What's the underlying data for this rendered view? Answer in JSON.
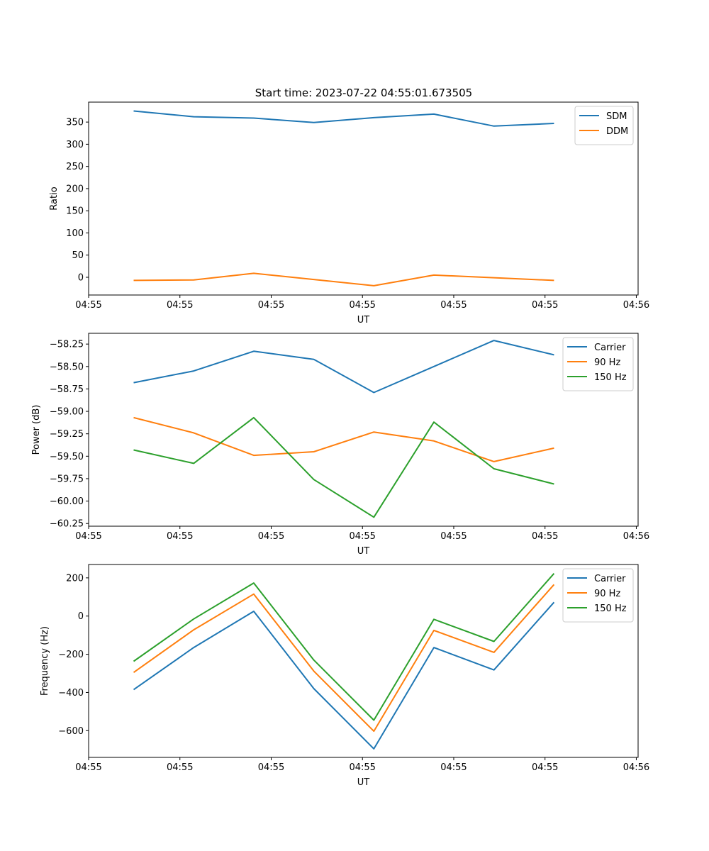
{
  "figure": {
    "title": "Start time: 2023-07-22 04:55:01.673505"
  },
  "colors": {
    "blue": "#1f77b4",
    "orange": "#ff7f0e",
    "green": "#2ca02c"
  },
  "chart_data": [
    {
      "type": "line",
      "title": "Start time: 2023-07-22 04:55:01.673505",
      "xlabel": "UT",
      "ylabel": "Ratio",
      "x": [
        0,
        1,
        2,
        3,
        4,
        5,
        6,
        7
      ],
      "xlim": [
        -0.75,
        8.4
      ],
      "x_ticks": [
        -0.75,
        0.77,
        2.29,
        3.81,
        5.33,
        6.85,
        8.37
      ],
      "x_tick_labels": [
        "04:55",
        "04:55",
        "04:55",
        "04:55",
        "04:55",
        "04:55",
        "04:56"
      ],
      "ylim": [
        -40,
        395
      ],
      "y_ticks": [
        0,
        50,
        100,
        150,
        200,
        250,
        300,
        350
      ],
      "y_tick_labels": [
        "0",
        "50",
        "100",
        "150",
        "200",
        "250",
        "300",
        "350"
      ],
      "legend_position": "top-right",
      "series": [
        {
          "name": "SDM",
          "color": "#1f77b4",
          "values": [
            375,
            362,
            359,
            349,
            360,
            368,
            341,
            347
          ]
        },
        {
          "name": "DDM",
          "color": "#ff7f0e",
          "values": [
            -7,
            -6,
            9,
            -5,
            -19,
            5,
            -1,
            -7
          ]
        }
      ]
    },
    {
      "type": "line",
      "title": "",
      "xlabel": "UT",
      "ylabel": "Power (dB)",
      "x": [
        0,
        1,
        2,
        3,
        4,
        5,
        6,
        7
      ],
      "xlim": [
        -0.75,
        8.4
      ],
      "x_ticks": [
        -0.75,
        0.77,
        2.29,
        3.81,
        5.33,
        6.85,
        8.37
      ],
      "x_tick_labels": [
        "04:55",
        "04:55",
        "04:55",
        "04:55",
        "04:55",
        "04:55",
        "04:56"
      ],
      "ylim": [
        -60.28,
        -58.13
      ],
      "y_ticks": [
        -60.25,
        -60.0,
        -59.75,
        -59.5,
        -59.25,
        -59.0,
        -58.75,
        -58.5,
        -58.25
      ],
      "y_tick_labels": [
        "−60.25",
        "−60.00",
        "−59.75",
        "−59.50",
        "−59.25",
        "−59.00",
        "−58.75",
        "−58.50",
        "−58.25"
      ],
      "legend_position": "top-right",
      "series": [
        {
          "name": "Carrier",
          "color": "#1f77b4",
          "values": [
            -58.68,
            -58.55,
            -58.33,
            -58.42,
            -58.79,
            -58.5,
            -58.21,
            -58.37
          ]
        },
        {
          "name": "90 Hz",
          "color": "#ff7f0e",
          "values": [
            -59.07,
            -59.24,
            -59.49,
            -59.45,
            -59.23,
            -59.33,
            -59.56,
            -59.41
          ]
        },
        {
          "name": "150 Hz",
          "color": "#2ca02c",
          "values": [
            -59.43,
            -59.58,
            -59.07,
            -59.76,
            -60.18,
            -59.12,
            -59.64,
            -59.81
          ]
        }
      ]
    },
    {
      "type": "line",
      "title": "",
      "xlabel": "UT",
      "ylabel": "Frequency (Hz)",
      "x": [
        0,
        1,
        2,
        3,
        4,
        5,
        6,
        7
      ],
      "xlim": [
        -0.75,
        8.4
      ],
      "x_ticks": [
        -0.75,
        0.77,
        2.29,
        3.81,
        5.33,
        6.85,
        8.37
      ],
      "x_tick_labels": [
        "04:55",
        "04:55",
        "04:55",
        "04:55",
        "04:55",
        "04:55",
        "04:56"
      ],
      "ylim": [
        -740,
        270
      ],
      "y_ticks": [
        -600,
        -400,
        -200,
        0,
        200
      ],
      "y_tick_labels": [
        "−600",
        "−400",
        "−200",
        "0",
        "200"
      ],
      "legend_position": "top-right",
      "series": [
        {
          "name": "Carrier",
          "color": "#1f77b4",
          "values": [
            -385,
            -165,
            25,
            -380,
            -695,
            -165,
            -282,
            72
          ]
        },
        {
          "name": "90 Hz",
          "color": "#ff7f0e",
          "values": [
            -295,
            -72,
            115,
            -288,
            -603,
            -75,
            -190,
            165
          ]
        },
        {
          "name": "150 Hz",
          "color": "#2ca02c",
          "values": [
            -237,
            -15,
            173,
            -230,
            -545,
            -17,
            -133,
            223
          ]
        }
      ]
    }
  ]
}
